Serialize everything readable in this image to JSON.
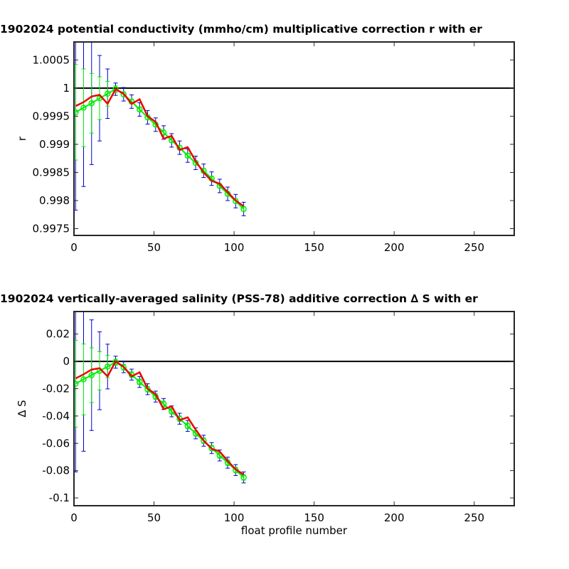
{
  "chart_data": [
    {
      "type": "line",
      "title": "1902024 potential conductivity (mmho/cm) multiplicative correction r with er",
      "ylabel": "r",
      "x": [
        1,
        6,
        11,
        16,
        21,
        26,
        31,
        36,
        41,
        46,
        51,
        56,
        61,
        66,
        71,
        76,
        81,
        86,
        91,
        96,
        101,
        106
      ],
      "xlim": [
        0,
        275
      ],
      "xticks": [
        0,
        50,
        100,
        150,
        200,
        250
      ],
      "ylim": [
        0.99738,
        1.00082
      ],
      "yticks": [
        1.0005,
        1,
        0.9995,
        0.999,
        0.9985,
        0.998,
        0.9975
      ],
      "hline": 1,
      "series": [
        {
          "style": "errorbar",
          "color": "#0000cc",
          "values": [
            0.99957,
            0.99965,
            0.99973,
            0.99982,
            0.9999,
            0.99998,
            0.99989,
            0.99976,
            0.99962,
            0.99948,
            0.99935,
            0.99921,
            0.99907,
            0.99894,
            0.9988,
            0.99867,
            0.99853,
            0.99839,
            0.99826,
            0.99812,
            0.99799,
            0.99785
          ],
          "errors": [
            0.00174,
            0.0014,
            0.00109,
            0.00076,
            0.00044,
            0.00011,
            0.00012,
            0.00012,
            0.00012,
            0.00012,
            0.00012,
            0.00012,
            0.00012,
            0.00012,
            0.00012,
            0.00012,
            0.00012,
            0.00012,
            0.00012,
            0.00012,
            0.00012,
            0.00012
          ]
        },
        {
          "style": "errorbar-line",
          "color": "#00ee00",
          "values": [
            0.99957,
            0.99965,
            0.99973,
            0.99982,
            0.9999,
            0.99998,
            0.99989,
            0.99976,
            0.99962,
            0.99948,
            0.99935,
            0.99921,
            0.99907,
            0.99894,
            0.9988,
            0.99867,
            0.99853,
            0.99839,
            0.99826,
            0.99812,
            0.99799,
            0.99785
          ],
          "errors": [
            0.00085,
            0.00069,
            0.00053,
            0.00038,
            0.00022,
            6e-05,
            4e-05,
            4e-05,
            4e-05,
            4e-05,
            4e-05,
            4e-05,
            4e-05,
            4e-05,
            4e-05,
            4e-05,
            4e-05,
            4e-05,
            4e-05,
            4e-05,
            4e-05,
            4e-05
          ]
        },
        {
          "style": "line",
          "color": "#ee0000",
          "values": [
            0.99968,
            0.99975,
            0.99985,
            0.99988,
            0.99972,
            0.99998,
            0.9999,
            0.99972,
            0.9998,
            0.9995,
            0.9994,
            0.9991,
            0.99915,
            0.9989,
            0.99895,
            0.9987,
            0.9985,
            0.99835,
            0.9983,
            0.99815,
            0.998,
            0.9979
          ]
        }
      ]
    },
    {
      "type": "line",
      "title": "1902024 vertically-averaged salinity (PSS-78) additive correction ∆ S with er",
      "ylabel": "∆ S",
      "xlabel": "float profile number",
      "x": [
        1,
        6,
        11,
        16,
        21,
        26,
        31,
        36,
        41,
        46,
        51,
        56,
        61,
        66,
        71,
        76,
        81,
        86,
        91,
        96,
        101,
        106
      ],
      "xlim": [
        0,
        275
      ],
      "xticks": [
        0,
        50,
        100,
        150,
        200,
        250
      ],
      "ylim": [
        -0.1057,
        0.0365
      ],
      "yticks": [
        0.02,
        0,
        -0.02,
        -0.04,
        -0.06,
        -0.08,
        -0.1
      ],
      "hline": 0,
      "series": [
        {
          "style": "errorbar",
          "color": "#0000cc",
          "values": [
            -0.0164,
            -0.0132,
            -0.0101,
            -0.0069,
            -0.0038,
            -0.0006,
            -0.0043,
            -0.0097,
            -0.0151,
            -0.0204,
            -0.0258,
            -0.0312,
            -0.0366,
            -0.042,
            -0.0473,
            -0.0527,
            -0.0581,
            -0.0635,
            -0.0689,
            -0.0742,
            -0.0796,
            -0.085
          ],
          "errors": [
            0.0646,
            0.0526,
            0.0405,
            0.0285,
            0.0164,
            0.0044,
            0.004,
            0.004,
            0.004,
            0.004,
            0.004,
            0.004,
            0.004,
            0.004,
            0.004,
            0.004,
            0.004,
            0.004,
            0.004,
            0.004,
            0.004,
            0.004
          ]
        },
        {
          "style": "errorbar-line",
          "color": "#00ee00",
          "values": [
            -0.0164,
            -0.0132,
            -0.0101,
            -0.0069,
            -0.0038,
            -0.0006,
            -0.0043,
            -0.0097,
            -0.0151,
            -0.0204,
            -0.0258,
            -0.0312,
            -0.0366,
            -0.042,
            -0.0473,
            -0.0527,
            -0.0581,
            -0.0635,
            -0.0689,
            -0.0742,
            -0.0796,
            -0.085
          ],
          "errors": [
            0.0318,
            0.0259,
            0.02,
            0.014,
            0.0081,
            0.0022,
            0.002,
            0.002,
            0.002,
            0.002,
            0.002,
            0.002,
            0.002,
            0.002,
            0.002,
            0.002,
            0.002,
            0.002,
            0.002,
            0.002,
            0.002,
            0.002
          ]
        },
        {
          "style": "line",
          "color": "#ee0000",
          "values": [
            -0.0125,
            -0.0095,
            -0.006,
            -0.005,
            -0.011,
            0,
            -0.004,
            -0.011,
            -0.008,
            -0.02,
            -0.024,
            -0.035,
            -0.033,
            -0.043,
            -0.041,
            -0.05,
            -0.058,
            -0.064,
            -0.066,
            -0.073,
            -0.079,
            -0.083
          ]
        }
      ]
    }
  ]
}
